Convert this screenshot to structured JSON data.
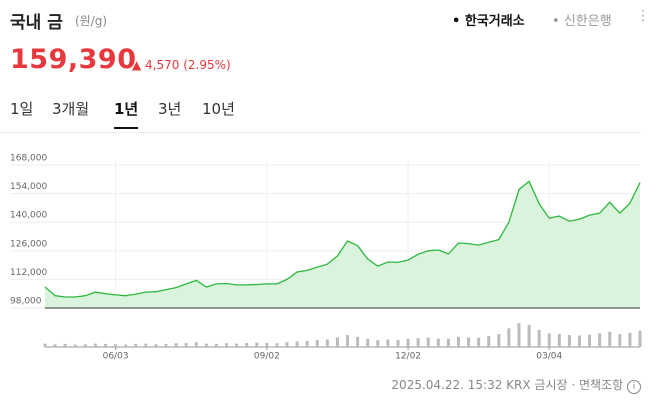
{
  "header": {
    "title": "국내 금",
    "unit": "(원/g)",
    "sources": [
      "한국거래소",
      "신한은행"
    ],
    "active_source": 0
  },
  "price": {
    "value": "159,390",
    "change": "4,570",
    "change_pct": "(2.95%)"
  },
  "periods": [
    "1일",
    "3개월",
    "1년",
    "3년",
    "10년"
  ],
  "selected_period": 2,
  "chart_data": {
    "type": "area",
    "color": "#2eb83f",
    "fill": "#d9f3dc",
    "categories": [
      null,
      null,
      null,
      null,
      null,
      null,
      null,
      "06/03",
      null,
      null,
      null,
      null,
      null,
      null,
      null,
      null,
      null,
      null,
      null,
      null,
      null,
      null,
      "09/02",
      null,
      null,
      null,
      null,
      null,
      null,
      null,
      null,
      null,
      null,
      null,
      null,
      null,
      "12/02",
      null,
      null,
      null,
      null,
      null,
      null,
      null,
      null,
      null,
      null,
      null,
      null,
      null,
      "03/04",
      null,
      null,
      null,
      null,
      null,
      null,
      null,
      null,
      null
    ],
    "values": [
      108300,
      104000,
      103400,
      103400,
      104000,
      105800,
      105000,
      104400,
      104000,
      104800,
      105800,
      106000,
      107000,
      108000,
      109800,
      111500,
      108300,
      109800,
      110000,
      109300,
      109300,
      109500,
      109800,
      109800,
      112000,
      115600,
      116400,
      118000,
      119500,
      123500,
      130800,
      128500,
      122000,
      118500,
      120500,
      120300,
      121500,
      124300,
      126000,
      126400,
      124500,
      129800,
      129500,
      128800,
      130200,
      131500,
      140000,
      156000,
      160000,
      149000,
      142000,
      143000,
      140500,
      141500,
      143500,
      144400,
      149800,
      144400,
      149300,
      159390
    ],
    "volumes": [
      10,
      8,
      9,
      7,
      8,
      10,
      9,
      8,
      7,
      9,
      10,
      8,
      9,
      11,
      12,
      14,
      10,
      9,
      11,
      10,
      12,
      13,
      12,
      11,
      14,
      16,
      18,
      20,
      22,
      28,
      35,
      30,
      24,
      20,
      22,
      21,
      24,
      26,
      28,
      25,
      24,
      30,
      28,
      27,
      32,
      38,
      55,
      70,
      65,
      50,
      40,
      38,
      35,
      34,
      36,
      40,
      45,
      38,
      42,
      48
    ],
    "volume_ylim": [
      0,
      100
    ],
    "ylim": [
      98000,
      168000
    ],
    "yticks": [
      {
        "value": 98000,
        "label": "98,000"
      },
      {
        "value": 112000,
        "label": "112,000"
      },
      {
        "value": 126000,
        "label": "126,000"
      },
      {
        "value": 140000,
        "label": "140,000"
      },
      {
        "value": 154000,
        "label": "154,000"
      },
      {
        "value": 168000,
        "label": "168,000"
      }
    ],
    "grid": true
  },
  "footer": {
    "timestamp": "2025.04.22. 15:32",
    "market": "KRX 금시장",
    "disclaimer": "면책조항"
  }
}
